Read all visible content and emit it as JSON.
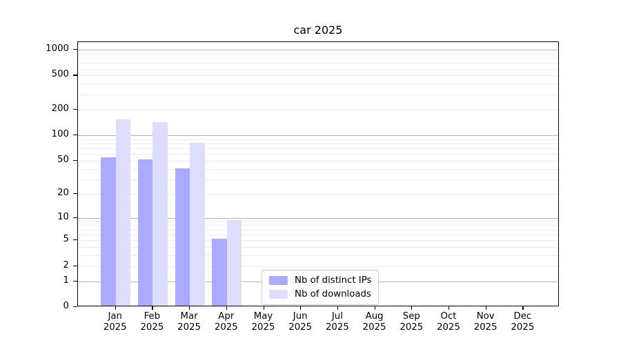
{
  "chart_data": {
    "type": "bar",
    "title": "car 2025",
    "year_label": "2025",
    "categories": [
      "Jan",
      "Feb",
      "Mar",
      "Apr",
      "May",
      "Jun",
      "Jul",
      "Aug",
      "Sep",
      "Oct",
      "Nov",
      "Dec"
    ],
    "series": [
      {
        "name": "Nb of distinct IPs",
        "color": "#aaaaff",
        "values": [
          53,
          50,
          39,
          5,
          0,
          0,
          0,
          0,
          0,
          0,
          0,
          0
        ]
      },
      {
        "name": "Nb of downloads",
        "color": "#ddddff",
        "values": [
          147,
          137,
          78,
          9,
          0,
          0,
          0,
          0,
          0,
          0,
          0,
          0
        ]
      }
    ],
    "y_ticks": [
      0,
      1,
      2,
      5,
      10,
      20,
      50,
      100,
      200,
      500,
      1000
    ],
    "y_scale": "log10(value+1)",
    "ylim": [
      0,
      1230
    ],
    "grid": "horizontal, major on decades, faint minors",
    "legend_position": "bottom-center",
    "background_color": "#ffffff",
    "axis_color": "#000000",
    "major_grid_color": "#b3b3b3",
    "minor_grid_color": "#ededed"
  }
}
